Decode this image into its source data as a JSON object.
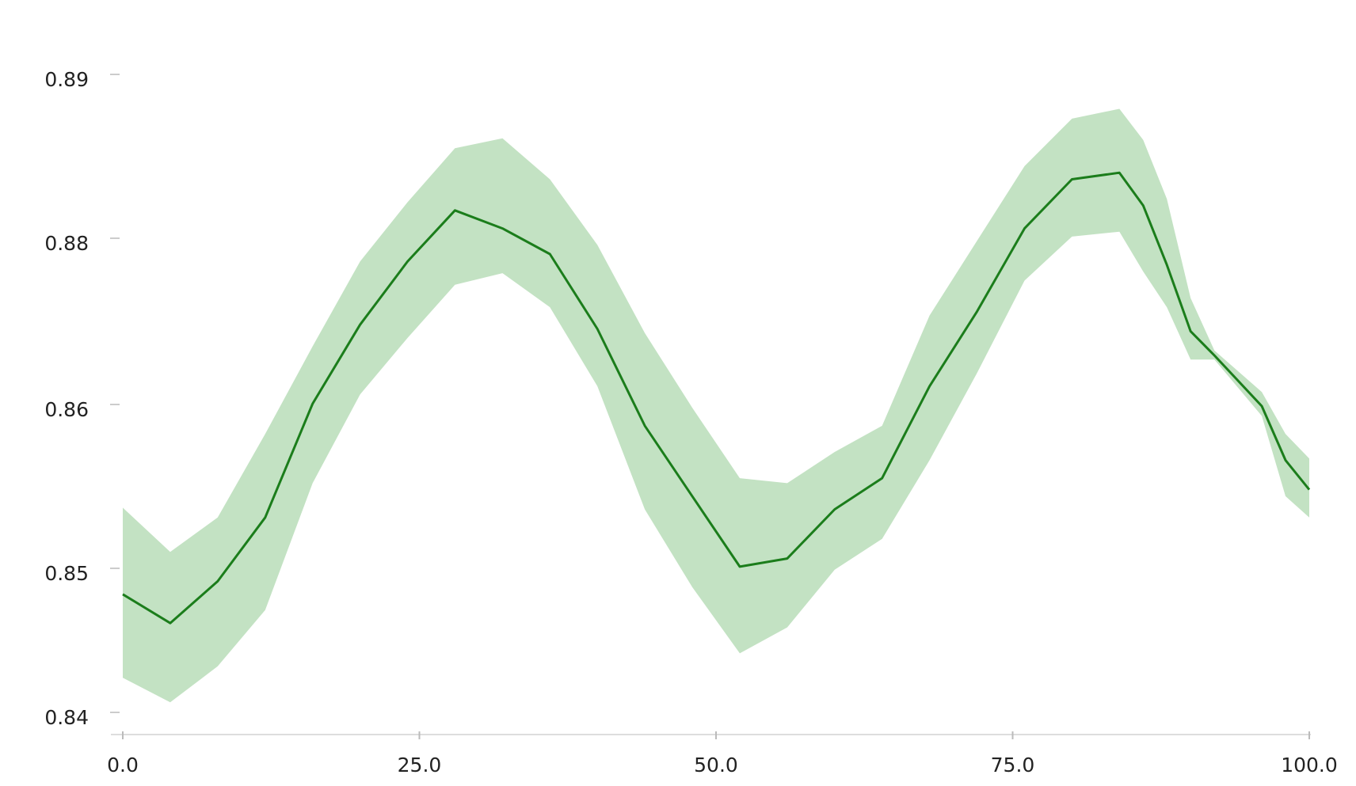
{
  "chart_data": {
    "type": "line",
    "x": [
      0,
      4,
      8,
      12,
      16,
      20,
      24,
      28,
      32,
      36,
      40,
      44,
      48,
      52,
      56,
      60,
      64,
      68,
      72,
      76,
      80,
      84,
      86,
      88,
      90,
      92,
      96,
      98,
      100
    ],
    "values": [
      0.8482,
      0.8462,
      0.8491,
      0.8531,
      0.8601,
      0.8696,
      0.8772,
      0.8817,
      0.8806,
      0.8781,
      0.8691,
      0.8587,
      0.8544,
      0.8501,
      0.8506,
      0.8536,
      0.8555,
      0.8622,
      0.8712,
      0.8806,
      0.8836,
      0.884,
      0.882,
      0.8768,
      0.8688,
      0.8659,
      0.8599,
      0.8566,
      0.8548
    ],
    "upper": [
      0.8537,
      0.851,
      0.8531,
      0.8582,
      0.867,
      0.8772,
      0.8822,
      0.8855,
      0.8861,
      0.8836,
      0.8792,
      0.8686,
      0.8598,
      0.8555,
      0.8552,
      0.8571,
      0.8587,
      0.8707,
      0.8797,
      0.8844,
      0.8873,
      0.8879,
      0.886,
      0.8824,
      0.8728,
      0.8665,
      0.8615,
      0.8582,
      0.8567
    ],
    "lower": [
      0.8424,
      0.8407,
      0.8432,
      0.8471,
      0.8552,
      0.8612,
      0.868,
      0.8744,
      0.8758,
      0.8717,
      0.8622,
      0.8536,
      0.8487,
      0.8441,
      0.8459,
      0.8499,
      0.8518,
      0.8566,
      0.8638,
      0.8749,
      0.8801,
      0.8804,
      0.876,
      0.8717,
      0.8654,
      0.8654,
      0.8593,
      0.8544,
      0.8531
    ],
    "color": "#1b7d1b",
    "band_color": "#c3e2c3",
    "xlim": [
      0,
      100
    ],
    "xticks": [
      {
        "value": 0,
        "label": "0.0"
      },
      {
        "value": 25,
        "label": "25.0"
      },
      {
        "value": 50,
        "label": "50.0"
      },
      {
        "value": 75,
        "label": "75.0"
      },
      {
        "value": 100,
        "label": "100.0"
      }
    ],
    "ylim": [
      0.84,
      0.89
    ],
    "yticks": [
      0.89,
      0.88,
      0.86,
      0.85,
      0.84
    ]
  }
}
